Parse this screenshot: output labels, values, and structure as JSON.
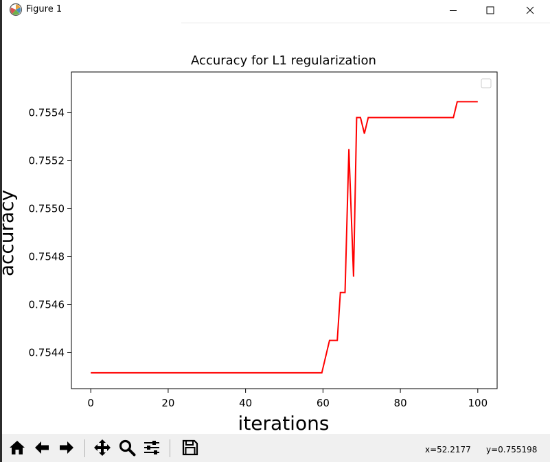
{
  "window": {
    "title": "Figure 1",
    "icons": {
      "app": "matplotlib-icon",
      "minimize": "minimize-icon",
      "maximize": "maximize-icon",
      "close": "close-icon"
    }
  },
  "toolbar": {
    "buttons": [
      {
        "name": "home",
        "icon": "home-icon"
      },
      {
        "name": "back",
        "icon": "arrow-left-icon"
      },
      {
        "name": "forward",
        "icon": "arrow-right-icon"
      },
      {
        "name": "pan",
        "icon": "move-icon"
      },
      {
        "name": "zoom",
        "icon": "magnifier-icon"
      },
      {
        "name": "configure-subplots",
        "icon": "sliders-icon"
      },
      {
        "name": "save",
        "icon": "floppy-disk-icon"
      }
    ],
    "x_readout": "x=52.2177",
    "y_readout": "y=0.755198"
  },
  "chart_data": {
    "type": "line",
    "title": "Accuracy for L1 regularization",
    "xlabel": "iterations",
    "ylabel": "accuracy",
    "xlim": [
      -5,
      105
    ],
    "ylim": [
      0.75425,
      0.75557
    ],
    "xticks": [
      0,
      20,
      40,
      60,
      80,
      100
    ],
    "xtick_labels": [
      "0",
      "20",
      "40",
      "60",
      "80",
      "100"
    ],
    "yticks": [
      0.7544,
      0.7546,
      0.7548,
      0.755,
      0.7552,
      0.7554
    ],
    "ytick_labels": [
      "0.7544",
      "0.7546",
      "0.7548",
      "0.7550",
      "0.7552",
      "0.7554"
    ],
    "grid": false,
    "legend": "upper right (empty)",
    "line_color": "#ff0000",
    "series": [
      {
        "x": [
          0,
          59.7,
          61.7,
          63.7,
          64.5,
          65.7,
          66.7,
          67.9,
          68.7,
          69.7,
          70.7,
          71.7,
          93.7,
          94.7,
          100
        ],
        "y": [
          0.754316,
          0.754316,
          0.754451,
          0.754451,
          0.754651,
          0.754651,
          0.755249,
          0.754717,
          0.75538,
          0.75538,
          0.755313,
          0.75538,
          0.75538,
          0.755446,
          0.755446
        ]
      }
    ]
  }
}
